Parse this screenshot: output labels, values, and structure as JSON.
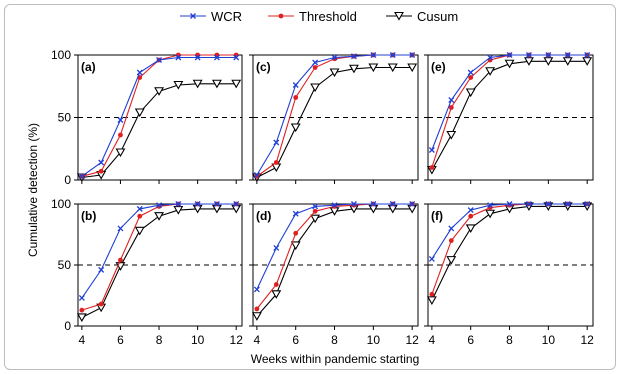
{
  "chart_data": {
    "type": "line",
    "ylabel": "Cumulative detection (%)",
    "xlabel": "Weeks within pandemic starting",
    "x": [
      4,
      5,
      6,
      7,
      8,
      9,
      10,
      11,
      12
    ],
    "xticks": [
      "4",
      "6",
      "8",
      "10",
      "12"
    ],
    "yticks": [
      "0",
      "50",
      "100"
    ],
    "ylim": [
      0,
      100
    ],
    "reference_line": 50,
    "legend": [
      {
        "name": "WCR",
        "color": "#1f3fd6",
        "marker": "x"
      },
      {
        "name": "Threshold",
        "color": "#e02020",
        "marker": "dot"
      },
      {
        "name": "Cusum",
        "color": "#000000",
        "marker": "triangle-down"
      }
    ],
    "panels": [
      {
        "label": "(a)",
        "series": [
          [
            3,
            14,
            48,
            86,
            96,
            98,
            98,
            98,
            98
          ],
          [
            3,
            7,
            36,
            82,
            96,
            100,
            100,
            100,
            100
          ],
          [
            2,
            4,
            22,
            54,
            71,
            76,
            77,
            77,
            77
          ]
        ]
      },
      {
        "label": "(b)",
        "series": [
          [
            23,
            46,
            80,
            96,
            99,
            100,
            100,
            100,
            100
          ],
          [
            13,
            18,
            54,
            90,
            98,
            100,
            100,
            100,
            100
          ],
          [
            7,
            15,
            49,
            78,
            90,
            95,
            96,
            96,
            96
          ]
        ]
      },
      {
        "label": "(c)",
        "series": [
          [
            4,
            30,
            76,
            94,
            98,
            99,
            100,
            100,
            100
          ],
          [
            3,
            14,
            66,
            90,
            97,
            99,
            100,
            100,
            100
          ],
          [
            2,
            10,
            42,
            74,
            86,
            89,
            90,
            90,
            90
          ]
        ]
      },
      {
        "label": "(d)",
        "series": [
          [
            30,
            64,
            92,
            98,
            99,
            100,
            100,
            100,
            100
          ],
          [
            14,
            34,
            76,
            94,
            98,
            99,
            100,
            100,
            100
          ],
          [
            8,
            26,
            66,
            88,
            94,
            96,
            96,
            96,
            96
          ]
        ]
      },
      {
        "label": "(e)",
        "series": [
          [
            24,
            64,
            86,
            98,
            100,
            100,
            100,
            100,
            100
          ],
          [
            10,
            58,
            82,
            96,
            100,
            100,
            100,
            100,
            100
          ],
          [
            8,
            36,
            70,
            87,
            93,
            95,
            95,
            95,
            95
          ]
        ]
      },
      {
        "label": "(f)",
        "series": [
          [
            55,
            80,
            95,
            99,
            100,
            100,
            100,
            100,
            100
          ],
          [
            26,
            70,
            90,
            97,
            99,
            100,
            100,
            100,
            100
          ],
          [
            21,
            54,
            80,
            92,
            96,
            98,
            98,
            98,
            98
          ]
        ]
      }
    ]
  }
}
